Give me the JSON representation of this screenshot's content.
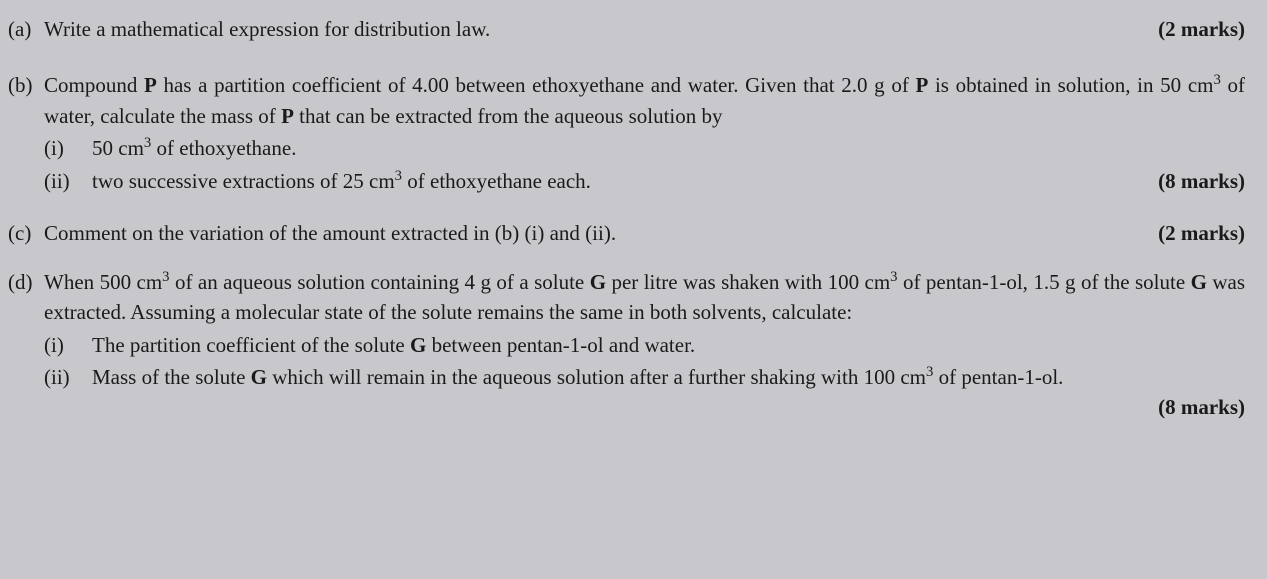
{
  "typography": {
    "fontFamily": "Times New Roman",
    "fontSizePt": 16,
    "textColor": "#1a1a1a",
    "backgroundColor": "#c8c8cc"
  },
  "questions": {
    "a": {
      "label": "(a)",
      "text": "Write a mathematical expression for distribution law.",
      "marks": "(2 marks)"
    },
    "b": {
      "label": "(b)",
      "textParts": {
        "p1": "Compound ",
        "bold1": "P",
        "p2": " has a partition coefficient of 4.00 between ethoxyethane and water. Given that 2.0 g of ",
        "bold2": "P",
        "p3": " is obtained in solution, in 50 cm",
        "sup1": "3",
        "p4": " of water, calculate the mass of ",
        "bold3": "P",
        "p5": " that can be extracted from the aqueous solution by"
      },
      "subItems": {
        "i": {
          "label": "(i)",
          "p1": "50 cm",
          "sup1": "3",
          "p2": " of ethoxyethane."
        },
        "ii": {
          "label": "(ii)",
          "p1": "two successive extractions of 25 cm",
          "sup1": "3",
          "p2": " of ethoxyethane each."
        }
      },
      "marks": "(8 marks)"
    },
    "c": {
      "label": "(c)",
      "text": "Comment on the variation of the amount extracted in (b) (i) and (ii).",
      "marks": "(2 marks)"
    },
    "d": {
      "label": "(d)",
      "textParts": {
        "p1": "When 500 cm",
        "sup1": "3",
        "p2": " of an aqueous solution containing 4 g of a solute ",
        "bold1": "G",
        "p3": " per litre was shaken with 100 cm",
        "sup2": "3",
        "p4": " of pentan-1-ol, 1.5 g of the solute ",
        "bold2": "G",
        "p5": " was extracted. Assuming a molecular state of the solute remains the same in both solvents, calculate:"
      },
      "subItems": {
        "i": {
          "label": "(i)",
          "p1": "The partition coefficient of the solute ",
          "bold1": "G",
          "p2": " between pentan-1-ol and water."
        },
        "ii": {
          "label": "(ii)",
          "p1": "Mass of the solute ",
          "bold1": "G",
          "p2": " which will remain in the aqueous solution after a further shaking with 100 cm",
          "sup1": "3",
          "p3": " of pentan-1-ol."
        }
      },
      "marks": "(8 marks)"
    }
  }
}
